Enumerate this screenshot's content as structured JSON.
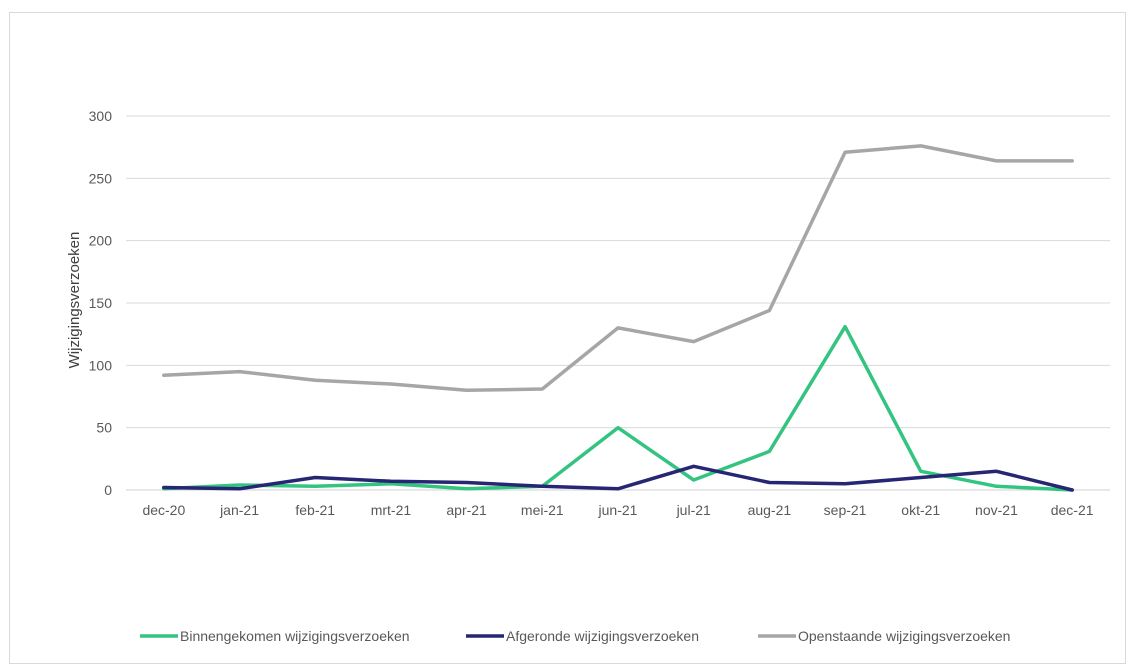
{
  "chart_data": {
    "type": "line",
    "title": "",
    "xlabel": "",
    "ylabel": "Wijzigingsverzoeken",
    "ylim": [
      0,
      300
    ],
    "yticks": [
      0,
      50,
      100,
      150,
      200,
      250,
      300
    ],
    "grid": true,
    "legend_position": "bottom",
    "categories": [
      "dec-20",
      "jan-21",
      "feb-21",
      "mrt-21",
      "apr-21",
      "mei-21",
      "jun-21",
      "jul-21",
      "aug-21",
      "sep-21",
      "okt-21",
      "nov-21",
      "dec-21"
    ],
    "series": [
      {
        "name": "Binnengekomen wijzigingsverzoeken",
        "color": "#33c481",
        "values": [
          1,
          4,
          3,
          5,
          1,
          3,
          50,
          8,
          31,
          131,
          15,
          3,
          0
        ]
      },
      {
        "name": "Afgeronde wijzigingsverzoeken",
        "color": "#262673",
        "values": [
          2,
          1,
          10,
          7,
          6,
          3,
          1,
          19,
          6,
          5,
          10,
          15,
          0
        ]
      },
      {
        "name": "Openstaande wijzigingsverzoeken",
        "color": "#a6a6a6",
        "values": [
          92,
          95,
          88,
          85,
          80,
          81,
          130,
          119,
          144,
          271,
          276,
          264,
          264
        ]
      }
    ]
  }
}
